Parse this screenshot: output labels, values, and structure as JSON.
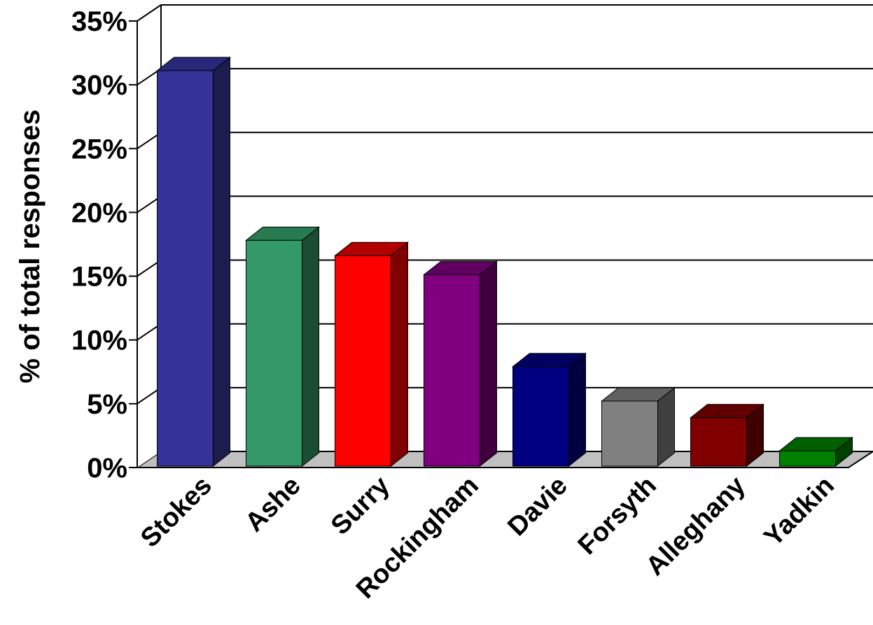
{
  "chart_data": {
    "type": "bar",
    "style": "3d",
    "ylabel": "% of total responses",
    "xlabel": "",
    "title": "",
    "categories": [
      "Stokes",
      "Ashe",
      "Surry",
      "Rockingham",
      "Davie",
      "Forsyth",
      "Alleghany",
      "Yadkin"
    ],
    "values": [
      31,
      17.7,
      16.5,
      15.0,
      7.8,
      5.1,
      3.8,
      1.2
    ],
    "colors": [
      "#333399",
      "#339966",
      "#ff0000",
      "#800080",
      "#000080",
      "#808080",
      "#800000",
      "#008000"
    ],
    "side_colors": [
      "#1c1c4d",
      "#1b4d35",
      "#800000",
      "#400040",
      "#000040",
      "#404040",
      "#400000",
      "#004000"
    ],
    "top_colors": [
      "#28287a",
      "#287a51",
      "#b30000",
      "#600060",
      "#000060",
      "#606060",
      "#600000",
      "#006000"
    ],
    "yticks": [
      0,
      5,
      10,
      15,
      20,
      25,
      30,
      35
    ],
    "ytick_labels": [
      "0%",
      "5%",
      "10%",
      "15%",
      "20%",
      "25%",
      "30%",
      "35%"
    ],
    "ylim": [
      0,
      35
    ],
    "grid": true,
    "legend": "none"
  }
}
